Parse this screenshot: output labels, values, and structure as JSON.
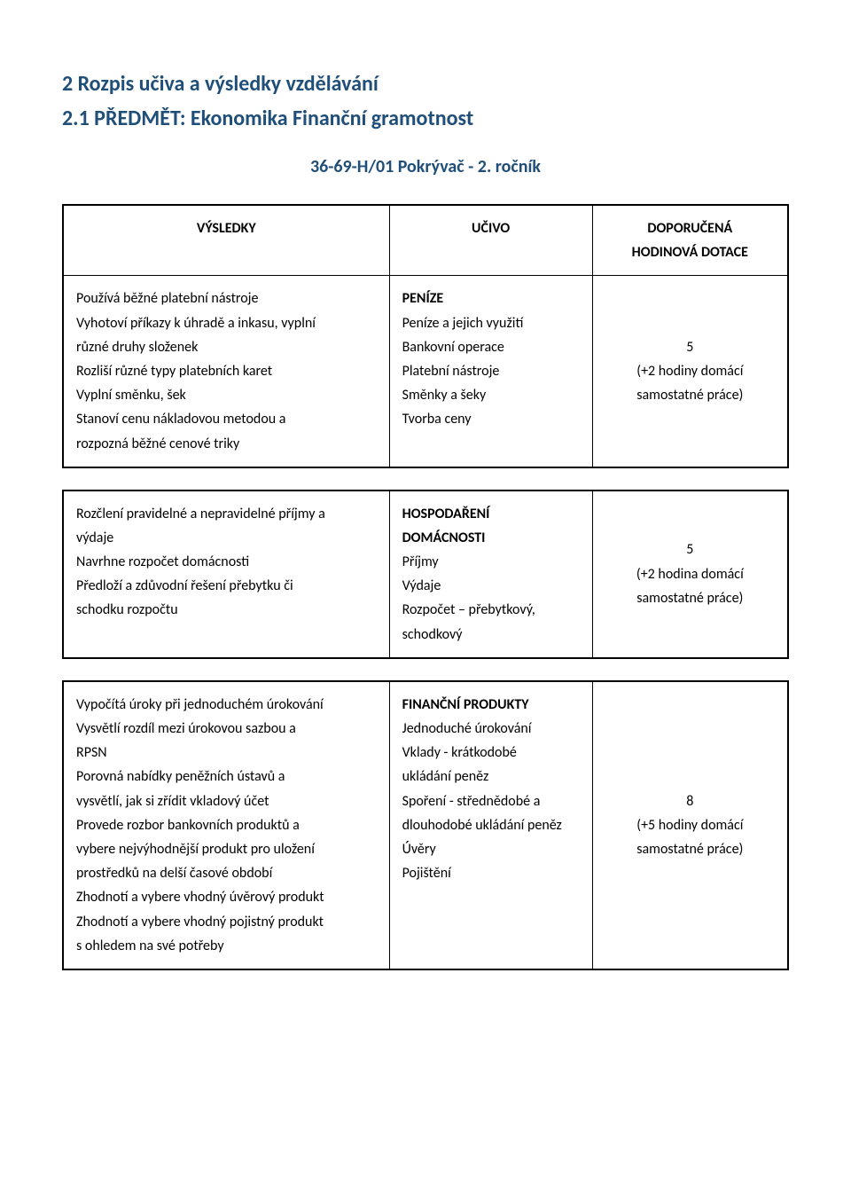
{
  "headings": {
    "h2": "2    Rozpis učiva a výsledky vzdělávání",
    "h3": "2.1  PŘEDMĚT: Ekonomika Finanční gramotnost",
    "subtitle": "36-69-H/01 Pokrývač - 2. ročník"
  },
  "table1": {
    "header": {
      "left": "VÝSLEDKY",
      "mid": "UČIVO",
      "right1": "DOPORUČENÁ",
      "right2": "HODINOVÁ DOTACE"
    },
    "left_lines": [
      "Používá běžné platební nástroje",
      "Vyhotoví příkazy k úhradě a inkasu, vyplní",
      "různé druhy složenek",
      "Rozliší různé typy platebních karet",
      "Vyplní směnku, šek",
      "Stanoví cenu nákladovou metodou a",
      "rozpozná běžné cenové triky"
    ],
    "mid_title": "PENÍZE",
    "mid_lines": [
      "Peníze a jejich využití",
      "Bankovní operace",
      "Platební nástroje",
      "Směnky a šeky",
      "Tvorba ceny"
    ],
    "right_lines": {
      "n": "5",
      "l1": "(+2 hodiny domácí",
      "l2": "samostatné práce)"
    }
  },
  "table2": {
    "left_lines": [
      "Rozčlení pravidelné a nepravidelné příjmy a",
      "výdaje",
      "Navrhne rozpočet domácnosti",
      "Předloží a zdůvodní řešení přebytku či",
      "schodku rozpočtu"
    ],
    "mid_title1": "HOSPODAŘENÍ",
    "mid_title2": "DOMÁCNOSTI",
    "mid_lines": [
      "Příjmy",
      "Výdaje",
      "Rozpočet – přebytkový,",
      "schodkový"
    ],
    "right_lines": {
      "n": "5",
      "l1": "(+2 hodina domácí",
      "l2": "samostatné práce)"
    }
  },
  "table3": {
    "left_lines": [
      "Vypočítá úroky při jednoduchém úrokování",
      "Vysvětlí rozdíl mezi úrokovou sazbou a",
      "RPSN",
      "Porovná nabídky peněžních ústavů a",
      "vysvětlí, jak si zřídit vkladový účet",
      "Provede rozbor bankovních produktů a",
      "vybere nejvýhodnější produkt pro uložení",
      "prostředků na delší časové období",
      "Zhodnotí a vybere vhodný úvěrový produkt",
      "Zhodnotí a vybere vhodný pojistný produkt",
      "s ohledem na své potřeby"
    ],
    "mid_title": "FINANČNÍ PRODUKTY",
    "mid_lines": [
      "Jednoduché úrokování",
      "Vklady - krátkodobé",
      "ukládání peněz",
      "Spoření - střednědobé a",
      "dlouhodobé ukládání peněz",
      "Úvěry",
      "Pojištění"
    ],
    "right_lines": {
      "n": "8",
      "l1": "(+5 hodiny domácí",
      "l2": "samostatné práce)"
    }
  }
}
